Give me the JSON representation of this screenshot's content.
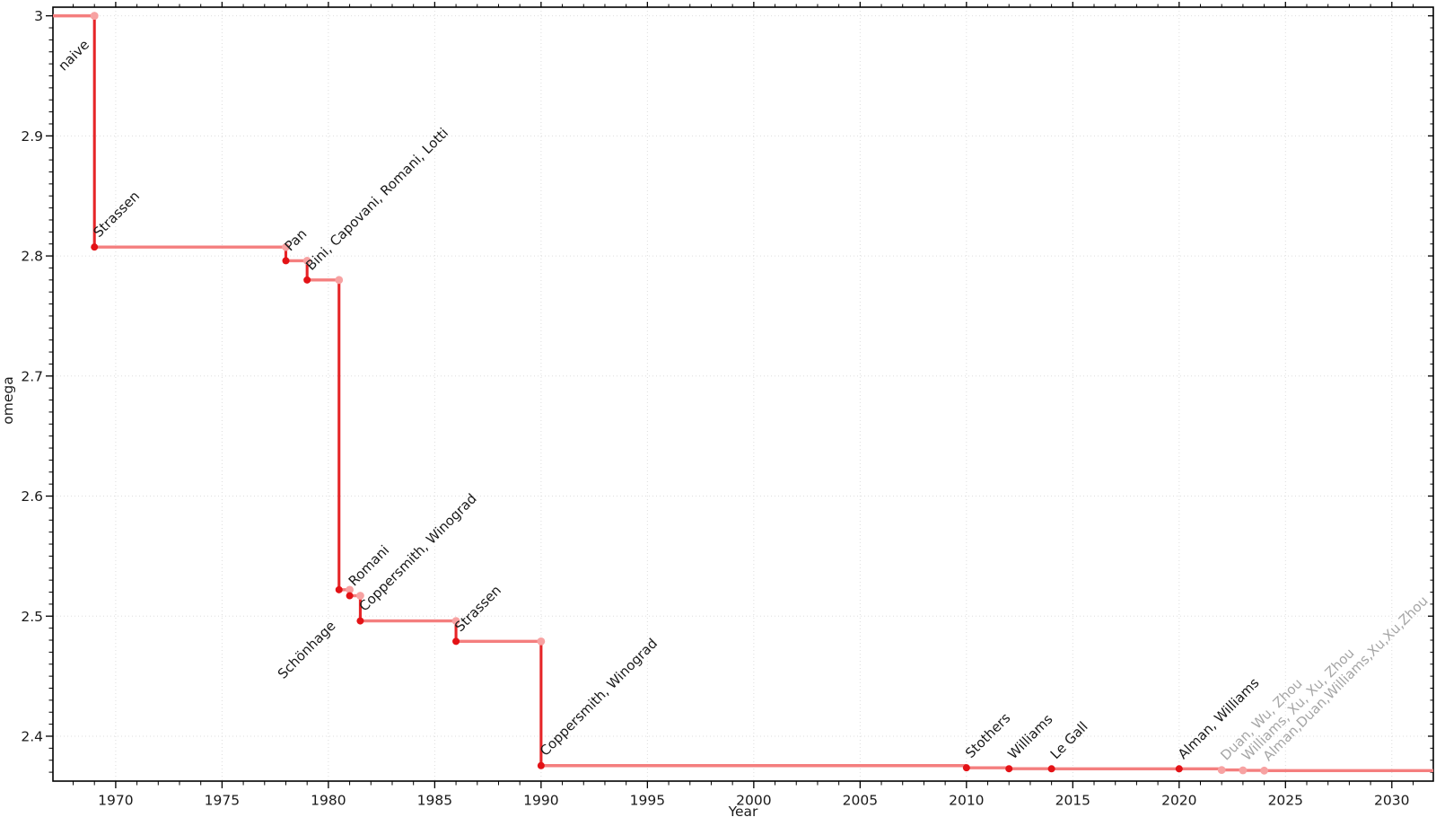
{
  "page": {
    "background": "#ffffff"
  },
  "chart_data": {
    "type": "line",
    "subtype": "step-post",
    "title": "",
    "xlabel": "Year",
    "ylabel": "omega",
    "xlim": [
      1967.05,
      2031.95
    ],
    "ylim": [
      2.3626,
      3.0072
    ],
    "grid": true,
    "legend": null,
    "x_ticks": [
      1970,
      1975,
      1980,
      1985,
      1990,
      1995,
      2000,
      2005,
      2010,
      2015,
      2020,
      2025,
      2030
    ],
    "x_tick_labels": [
      "1970",
      "1975",
      "1980",
      "1985",
      "1990",
      "1995",
      "2000",
      "2005",
      "2010",
      "2015",
      "2020",
      "2025",
      "2030"
    ],
    "x_minor_step": 1,
    "y_ticks": [
      2.4,
      2.5,
      2.6,
      2.7,
      2.8,
      2.9,
      3.0
    ],
    "y_tick_labels": [
      "2.4",
      "2.5",
      "2.6",
      "2.7",
      "2.8",
      "2.9",
      "3"
    ],
    "y_minor_step": 0.01,
    "line_extends_to_year": 2031.95,
    "events": [
      {
        "label": "naive",
        "year": 1969,
        "omega": 3.0,
        "marker": "light",
        "label_color": "#1a1a1a",
        "label_offset": [
          -34,
          62
        ]
      },
      {
        "label": "Strassen",
        "year": 1969,
        "omega": 2.8074,
        "marker": "dark",
        "label_color": "#1a1a1a"
      },
      {
        "label": "Pan",
        "year": 1978,
        "omega": 2.796,
        "marker": "dark",
        "label_color": "#1a1a1a"
      },
      {
        "label": "Bini, Capovani, Romani, Lotti",
        "year": 1979,
        "omega": 2.78,
        "marker": "dark",
        "label_color": "#1a1a1a"
      },
      {
        "label": "Schönhage",
        "year": 1980.5,
        "omega": 2.522,
        "marker": "dark",
        "label_color": "#1a1a1a",
        "label_offset": [
          -62,
          100
        ]
      },
      {
        "label": "Romani",
        "year": 1981,
        "omega": 2.517,
        "marker": "dark",
        "label_color": "#1a1a1a"
      },
      {
        "label": "Coppersmith, Winograd",
        "year": 1981.5,
        "omega": 2.496,
        "marker": "dark",
        "label_color": "#1a1a1a"
      },
      {
        "label": "Strassen",
        "year": 1986,
        "omega": 2.479,
        "marker": "dark",
        "label_color": "#1a1a1a"
      },
      {
        "label": "Coppersmith, Winograd",
        "year": 1990,
        "omega": 2.3755,
        "marker": "dark",
        "label_color": "#1a1a1a"
      },
      {
        "label": "Stothers",
        "year": 2010,
        "omega": 2.3737,
        "marker": "dark",
        "label_color": "#1a1a1a"
      },
      {
        "label": "Williams",
        "year": 2012,
        "omega": 2.3729,
        "marker": "dark",
        "label_color": "#1a1a1a"
      },
      {
        "label": "Le Gall",
        "year": 2014,
        "omega": 2.3728639,
        "marker": "dark",
        "label_color": "#1a1a1a"
      },
      {
        "label": "Alman, Williams",
        "year": 2020,
        "omega": 2.3728596,
        "marker": "dark",
        "label_color": "#1a1a1a"
      },
      {
        "label": "Duan, Wu, Zhou",
        "year": 2022,
        "omega": 2.371866,
        "marker": "light",
        "label_color": "#a5a5a5"
      },
      {
        "label": "Williams, Xu, Xu, Zhou",
        "year": 2023,
        "omega": 2.371552,
        "marker": "light",
        "label_color": "#a5a5a5"
      },
      {
        "label": "Alman,Duan,Williams,Xu,Xu,Zhou",
        "year": 2024,
        "omega": 2.371339,
        "marker": "light",
        "label_color": "#a5a5a5"
      }
    ]
  },
  "style": {
    "step_line_color": "#f47e7e",
    "drop_line_color": "#e62528",
    "marker_dark_color": "#e31216",
    "marker_light_color": "#f7a2a2",
    "grid_color": "#dddddd",
    "axis_color": "#000000",
    "text_color": "#1a1a1a"
  }
}
